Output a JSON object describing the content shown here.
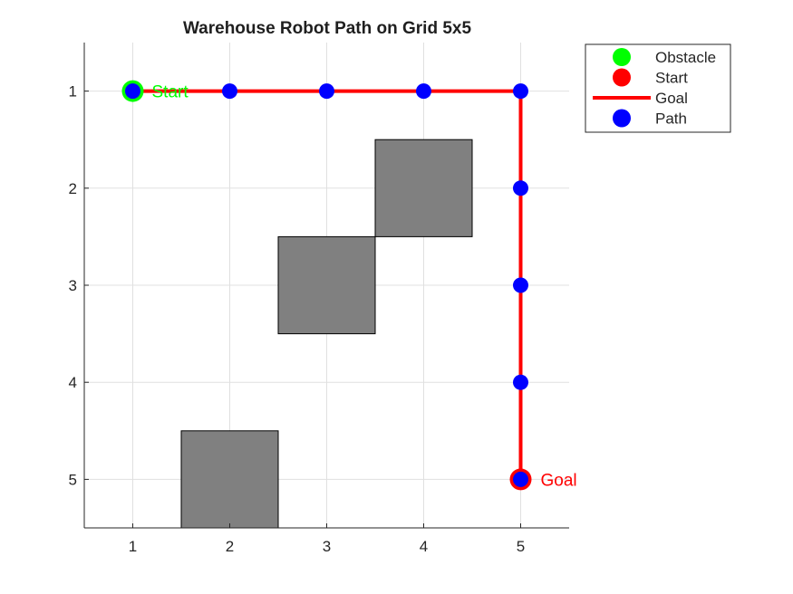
{
  "chart_data": {
    "type": "scatter",
    "title": "Warehouse Robot Path on Grid 5x5",
    "xlabel": "",
    "ylabel": "",
    "xlim": [
      0.5,
      5.5
    ],
    "ylim": [
      0.5,
      5.5
    ],
    "y_reversed": true,
    "grid": true,
    "xticks": [
      1,
      2,
      3,
      4,
      5
    ],
    "yticks": [
      1,
      2,
      3,
      4,
      5
    ],
    "obstacles": [
      {
        "x": 2,
        "y": 5
      },
      {
        "x": 3,
        "y": 3
      },
      {
        "x": 4,
        "y": 2
      }
    ],
    "path": [
      {
        "x": 1,
        "y": 1
      },
      {
        "x": 2,
        "y": 1
      },
      {
        "x": 3,
        "y": 1
      },
      {
        "x": 4,
        "y": 1
      },
      {
        "x": 5,
        "y": 1
      },
      {
        "x": 5,
        "y": 2
      },
      {
        "x": 5,
        "y": 3
      },
      {
        "x": 5,
        "y": 4
      },
      {
        "x": 5,
        "y": 5
      }
    ],
    "start": {
      "x": 1,
      "y": 1,
      "label": "Start"
    },
    "goal": {
      "x": 5,
      "y": 5,
      "label": "Goal"
    },
    "legend": {
      "position": "outside-top-right",
      "entries": [
        {
          "label": "Obstacle",
          "marker": "circle",
          "color": "#00ff00"
        },
        {
          "label": "Start",
          "marker": "circle",
          "color": "#ff0000"
        },
        {
          "label": "Goal",
          "marker": "line",
          "color": "#ff0000"
        },
        {
          "label": "Path",
          "marker": "circle",
          "color": "#0000ff"
        }
      ]
    },
    "colors": {
      "obstacle_fill": "#808080",
      "path_line": "#ff0000",
      "path_marker": "#0000ff",
      "start_ring": "#00ff00",
      "goal_ring": "#ff0000",
      "start_text": "#00ff00",
      "goal_text": "#ff0000"
    }
  }
}
